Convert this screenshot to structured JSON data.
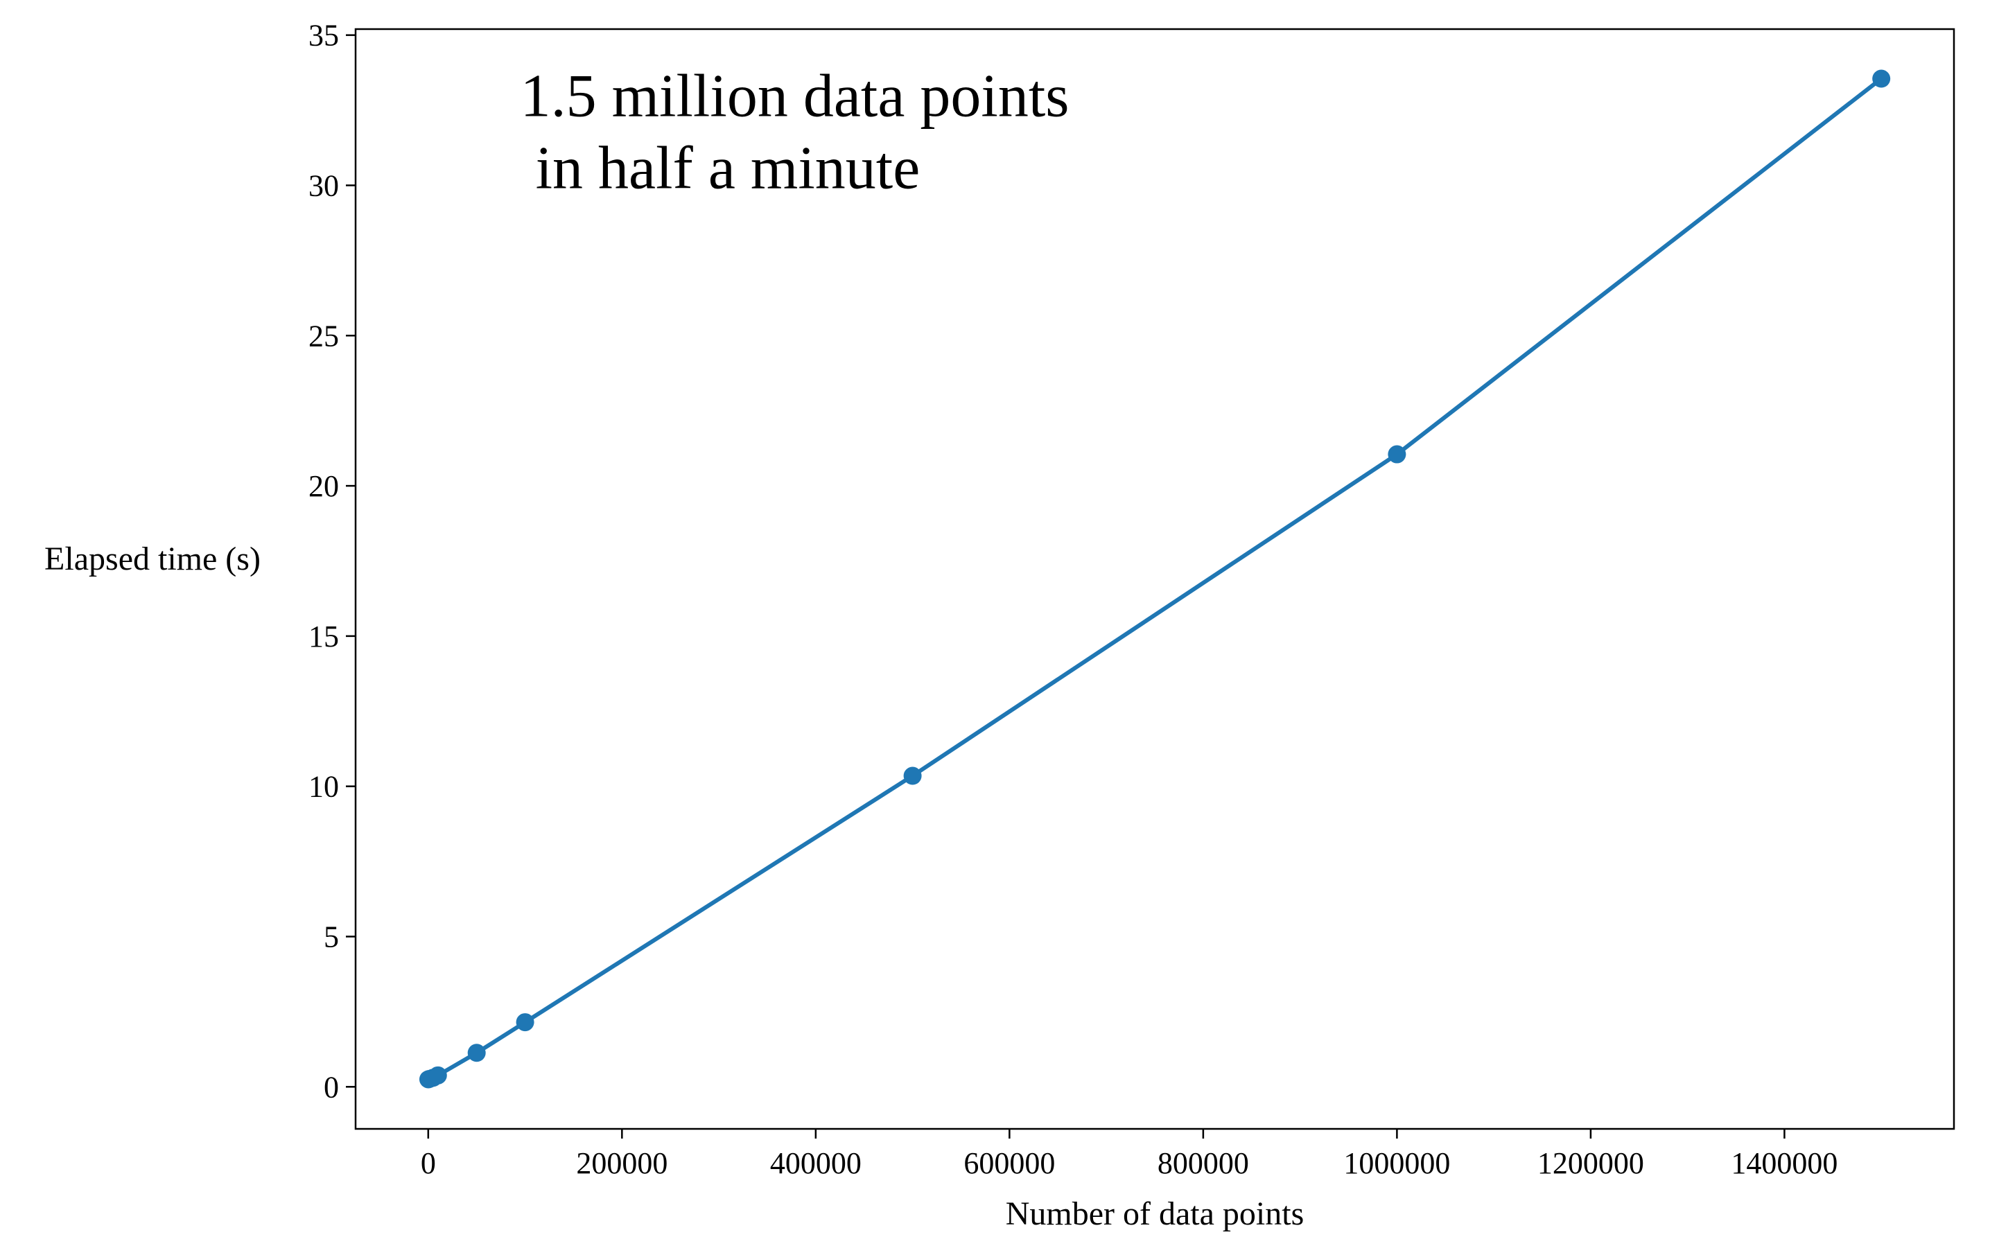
{
  "chart_data": {
    "type": "line",
    "title": "",
    "xlabel": "Number of data points",
    "ylabel": "Elapsed time (s)",
    "xlim": [
      -75000,
      1575000
    ],
    "ylim": [
      -1.4,
      35.2
    ],
    "grid": false,
    "legend": "none",
    "x_ticks": [
      0,
      200000,
      400000,
      600000,
      800000,
      1000000,
      1200000,
      1400000
    ],
    "x_tick_labels": [
      "0",
      "200000",
      "400000",
      "600000",
      "800000",
      "1000000",
      "1200000",
      "1400000"
    ],
    "y_ticks": [
      0,
      5,
      10,
      15,
      20,
      25,
      30,
      35
    ],
    "y_tick_labels": [
      "0",
      "5",
      "10",
      "15",
      "20",
      "25",
      "30",
      "35"
    ],
    "annotation": {
      "lines": [
        "1.5 million data points",
        " in half a minute"
      ],
      "x": 95000,
      "y": 32.3
    },
    "series": [
      {
        "color": "#1f77b4",
        "marker": "circle",
        "x": [
          100,
          1000,
          5000,
          10000,
          50000,
          100000,
          500000,
          1000000,
          1500000
        ],
        "y": [
          0.25,
          0.26,
          0.3,
          0.38,
          1.13,
          2.15,
          10.35,
          21.05,
          33.55
        ]
      }
    ]
  }
}
